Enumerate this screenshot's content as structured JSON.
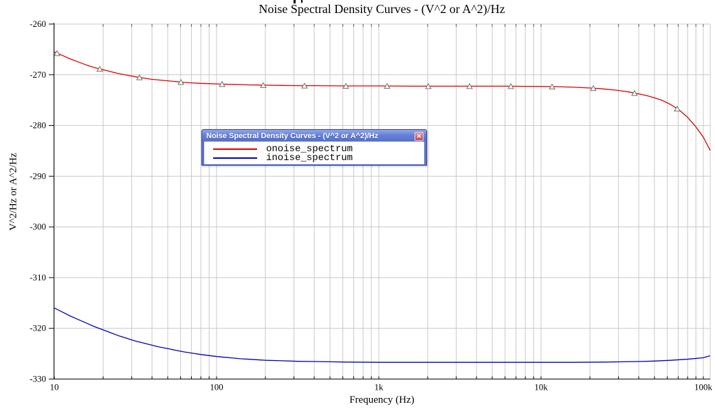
{
  "page": {
    "background": "#ffffff"
  },
  "chart_data": {
    "type": "line",
    "title": "Noise Spectral Density Curves - (V^2 or A^2)/Hz",
    "xlabel": "Frequency (Hz)",
    "ylabel": "V^2/Hz or A^2/Hz",
    "x_scale": "log",
    "xlim": [
      10,
      110000
    ],
    "ylim": [
      -330,
      -260
    ],
    "grid": true,
    "legend_position": "floating-window",
    "x_ticks": [
      {
        "log": 1,
        "label": "10"
      },
      {
        "log": 2,
        "label": "100"
      },
      {
        "log": 3,
        "label": "1k"
      },
      {
        "log": 4,
        "label": "10k"
      },
      {
        "log": 5,
        "label": "100k"
      }
    ],
    "y_ticks": [
      {
        "value": -260,
        "label": "-260"
      },
      {
        "value": -270,
        "label": "-270"
      },
      {
        "value": -280,
        "label": "-280"
      },
      {
        "value": -290,
        "label": "-290"
      },
      {
        "value": -300,
        "label": "-300"
      },
      {
        "value": -310,
        "label": "-310"
      },
      {
        "value": -320,
        "label": "-320"
      },
      {
        "value": -330,
        "label": "-330"
      }
    ],
    "colors": {
      "grid": "#c8c8c8",
      "axis": "#000000",
      "border": "#c8c8c8",
      "marker_stroke": "#6f6f6f",
      "marker_fill": "#ffffff"
    },
    "series": [
      {
        "name": "onoise_spectrum",
        "color": "#dd0000",
        "marker": "triangle",
        "points_log10x": [
          [
            1.0,
            -265.5
          ],
          [
            1.05,
            -266.2
          ],
          [
            1.1,
            -266.9
          ],
          [
            1.15,
            -267.5
          ],
          [
            1.2,
            -268.1
          ],
          [
            1.25,
            -268.6
          ],
          [
            1.3,
            -269.0
          ],
          [
            1.35,
            -269.4
          ],
          [
            1.4,
            -269.8
          ],
          [
            1.45,
            -270.1
          ],
          [
            1.5,
            -270.4
          ],
          [
            1.55,
            -270.65
          ],
          [
            1.6,
            -270.9
          ],
          [
            1.65,
            -271.05
          ],
          [
            1.7,
            -271.2
          ],
          [
            1.75,
            -271.35
          ],
          [
            1.8,
            -271.5
          ],
          [
            1.85,
            -271.6
          ],
          [
            1.9,
            -271.7
          ],
          [
            1.95,
            -271.75
          ],
          [
            2.0,
            -271.8
          ],
          [
            2.1,
            -271.9
          ],
          [
            2.2,
            -272.0
          ],
          [
            2.3,
            -272.05
          ],
          [
            2.4,
            -272.1
          ],
          [
            2.5,
            -272.15
          ],
          [
            2.6,
            -272.15
          ],
          [
            2.8,
            -272.2
          ],
          [
            3.0,
            -272.2
          ],
          [
            3.2,
            -272.25
          ],
          [
            3.4,
            -272.25
          ],
          [
            3.6,
            -272.25
          ],
          [
            3.8,
            -272.25
          ],
          [
            4.0,
            -272.3
          ],
          [
            4.1,
            -272.35
          ],
          [
            4.2,
            -272.45
          ],
          [
            4.3,
            -272.6
          ],
          [
            4.35,
            -272.7
          ],
          [
            4.4,
            -272.85
          ],
          [
            4.45,
            -273.0
          ],
          [
            4.5,
            -273.2
          ],
          [
            4.55,
            -273.45
          ],
          [
            4.6,
            -273.75
          ],
          [
            4.65,
            -274.1
          ],
          [
            4.7,
            -274.55
          ],
          [
            4.75,
            -275.1
          ],
          [
            4.8,
            -275.9
          ],
          [
            4.85,
            -276.9
          ],
          [
            4.9,
            -278.3
          ],
          [
            4.95,
            -280.1
          ],
          [
            5.0,
            -282.3
          ],
          [
            5.042,
            -284.9
          ]
        ],
        "marker_log10x": [
          1.017,
          1.28,
          1.525,
          1.78,
          2.034,
          2.288,
          2.542,
          2.797,
          3.051,
          3.305,
          3.559,
          3.814,
          4.068,
          4.322,
          4.576,
          4.839
        ]
      },
      {
        "name": "inoise_spectrum",
        "color": "#0000bb",
        "marker": "none",
        "points_log10x": [
          [
            1.0,
            -316.0
          ],
          [
            1.05,
            -316.8
          ],
          [
            1.1,
            -317.6
          ],
          [
            1.15,
            -318.3
          ],
          [
            1.2,
            -319.0
          ],
          [
            1.25,
            -319.7
          ],
          [
            1.3,
            -320.3
          ],
          [
            1.35,
            -320.9
          ],
          [
            1.4,
            -321.5
          ],
          [
            1.45,
            -322.0
          ],
          [
            1.5,
            -322.5
          ],
          [
            1.55,
            -322.9
          ],
          [
            1.6,
            -323.3
          ],
          [
            1.65,
            -323.7
          ],
          [
            1.7,
            -324.0
          ],
          [
            1.75,
            -324.35
          ],
          [
            1.8,
            -324.65
          ],
          [
            1.85,
            -324.9
          ],
          [
            1.9,
            -325.15
          ],
          [
            1.95,
            -325.35
          ],
          [
            2.0,
            -325.55
          ],
          [
            2.05,
            -325.7
          ],
          [
            2.1,
            -325.85
          ],
          [
            2.15,
            -326.0
          ],
          [
            2.2,
            -326.1
          ],
          [
            2.3,
            -326.3
          ],
          [
            2.4,
            -326.4
          ],
          [
            2.5,
            -326.5
          ],
          [
            2.6,
            -326.55
          ],
          [
            2.7,
            -326.6
          ],
          [
            2.8,
            -326.65
          ],
          [
            3.0,
            -326.7
          ],
          [
            3.5,
            -326.7
          ],
          [
            4.0,
            -326.7
          ],
          [
            4.2,
            -326.7
          ],
          [
            4.4,
            -326.65
          ],
          [
            4.5,
            -326.6
          ],
          [
            4.6,
            -326.55
          ],
          [
            4.7,
            -326.45
          ],
          [
            4.8,
            -326.3
          ],
          [
            4.9,
            -326.1
          ],
          [
            5.0,
            -325.8
          ],
          [
            5.042,
            -325.4
          ]
        ]
      }
    ]
  },
  "legend_window": {
    "title": "Noise Spectral Density Curves - (V^2 or A^2)/Hz",
    "close_icon_glyph": "✕",
    "entries": [
      {
        "label": "onoise_spectrum",
        "color": "#dd0000"
      },
      {
        "label": "inoise_spectrum",
        "color": "#0000bb"
      }
    ]
  }
}
